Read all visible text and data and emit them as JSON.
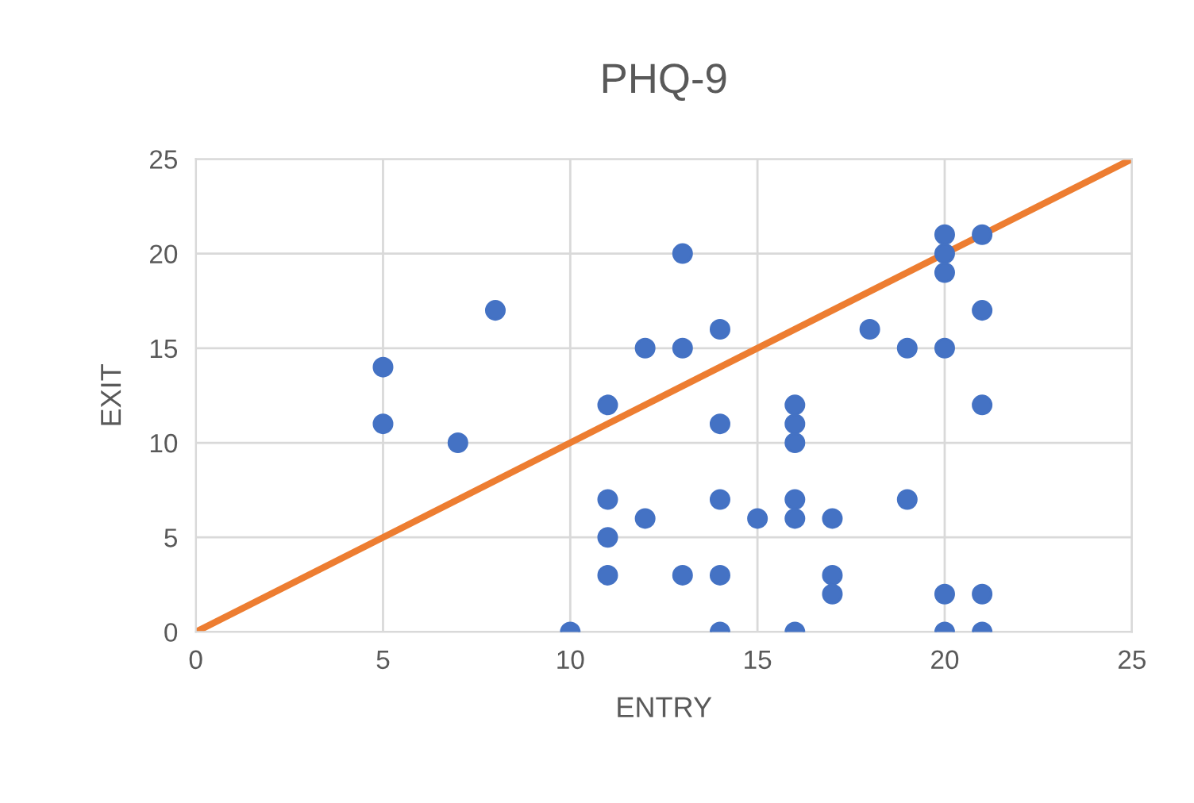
{
  "chart_data": {
    "type": "scatter",
    "title": "PHQ-9",
    "xlabel": "ENTRY",
    "ylabel": "EXIT",
    "xlim": [
      0,
      25
    ],
    "ylim": [
      0,
      25
    ],
    "xticks": [
      0,
      5,
      10,
      15,
      20,
      25
    ],
    "yticks": [
      0,
      5,
      10,
      15,
      20,
      25
    ],
    "grid": true,
    "legend": false,
    "series": [
      {
        "marker": "circle",
        "color": "#4472c4",
        "x": [
          5,
          5,
          7,
          8,
          10,
          11,
          11,
          11,
          11,
          12,
          12,
          13,
          13,
          13,
          14,
          14,
          14,
          14,
          14,
          15,
          16,
          16,
          16,
          16,
          16,
          16,
          17,
          17,
          17,
          18,
          19,
          19,
          20,
          20,
          20,
          20,
          20,
          20,
          21,
          21,
          21,
          21,
          21
        ],
        "values": [
          14,
          11,
          10,
          17,
          0,
          12,
          7,
          5,
          3,
          15,
          6,
          20,
          15,
          3,
          16,
          11,
          7,
          3,
          0,
          6,
          12,
          11,
          10,
          7,
          6,
          0,
          6,
          3,
          2,
          16,
          15,
          7,
          21,
          20,
          19,
          15,
          2,
          0,
          21,
          17,
          12,
          2,
          0
        ]
      },
      {
        "type": "line",
        "marker": "none",
        "color": "#ed7d31",
        "x": [
          0,
          25
        ],
        "values": [
          0,
          25
        ]
      }
    ]
  }
}
